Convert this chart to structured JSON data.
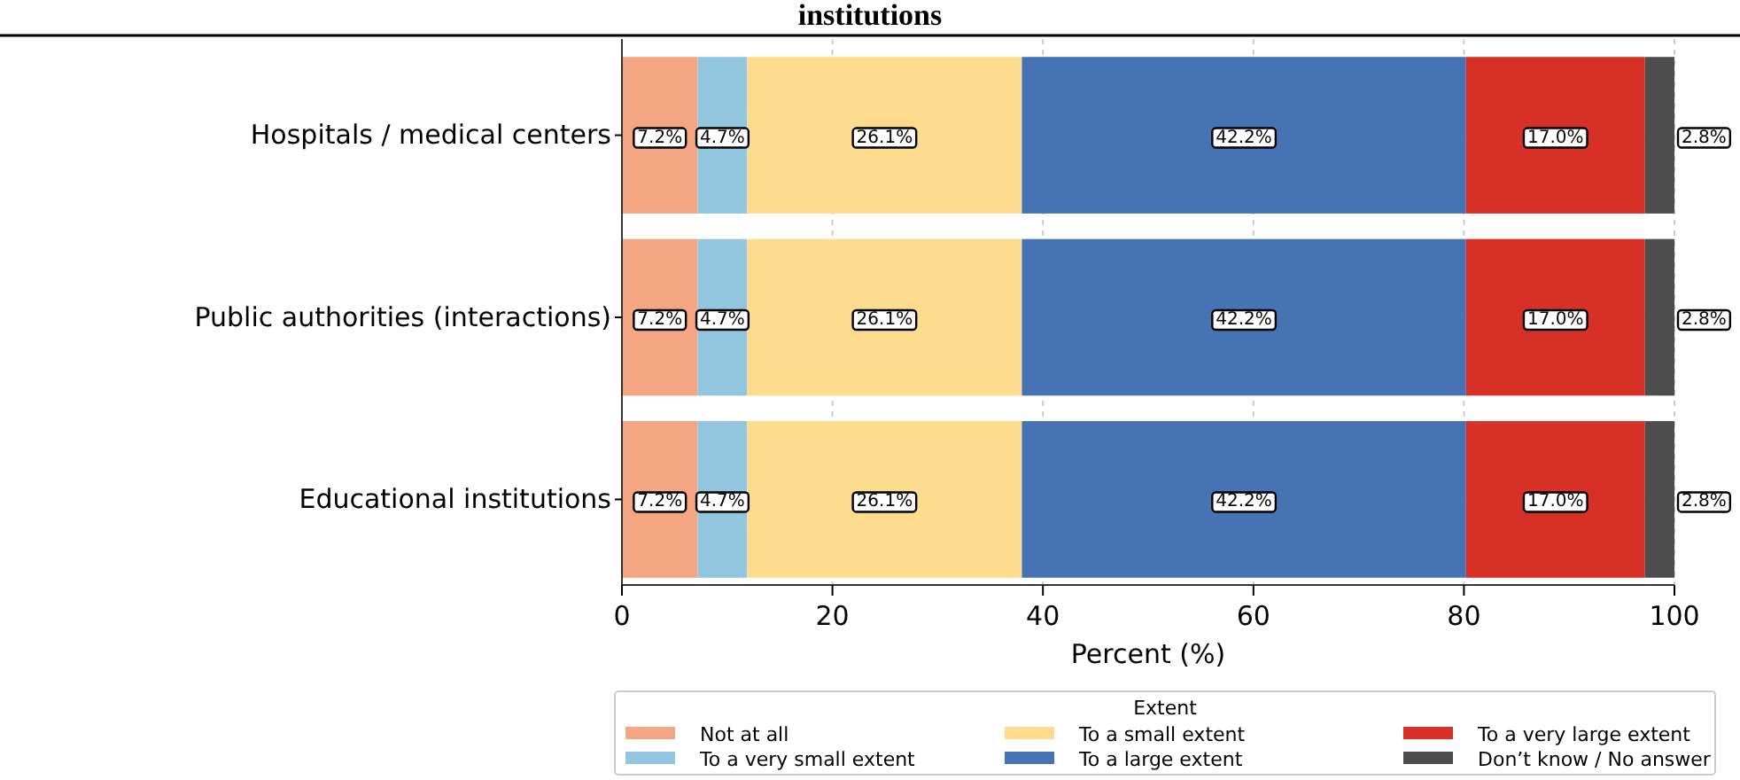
{
  "chart_data": {
    "type": "bar",
    "orientation": "horizontal",
    "stacked": true,
    "title": "institutions",
    "xlabel": "Percent (%)",
    "legend_title": "Extent",
    "legend": "bottom",
    "grid": true,
    "categories": [
      "Hospitals / medical centers",
      "Public authorities (interactions)",
      "Educational institutions"
    ],
    "xlim": [
      0,
      100
    ],
    "xticks": [
      0,
      20,
      40,
      60,
      80,
      100
    ],
    "series": [
      {
        "name": "Not at all",
        "color": "#f4a582",
        "values": [
          7.2,
          7.2,
          7.2
        ],
        "value_labels": [
          "7.2%",
          "7.2%",
          "7.2%"
        ]
      },
      {
        "name": "To a very small extent",
        "color": "#92c5de",
        "values": [
          4.7,
          4.7,
          4.7
        ],
        "value_labels": [
          "4.7%",
          "4.7%",
          "4.7%"
        ]
      },
      {
        "name": "To a small extent",
        "color": "#fddc8f",
        "values": [
          26.1,
          26.1,
          26.1
        ],
        "value_labels": [
          "26.1%",
          "26.1%",
          "26.1%"
        ]
      },
      {
        "name": "To a large extent",
        "color": "#4573b3",
        "values": [
          42.2,
          42.2,
          42.2
        ],
        "value_labels": [
          "42.2%",
          "42.2%",
          "42.2%"
        ]
      },
      {
        "name": "To a very large extent",
        "color": "#d73027",
        "values": [
          17.0,
          17.0,
          17.0
        ],
        "value_labels": [
          "17.0%",
          "17.0%",
          "17.0%"
        ]
      },
      {
        "name": "Don’t know / No answer",
        "color": "#4d4d4d",
        "values": [
          2.8,
          2.8,
          2.8
        ],
        "value_labels": [
          "2.8%",
          "2.8%",
          "2.8%"
        ]
      }
    ]
  }
}
